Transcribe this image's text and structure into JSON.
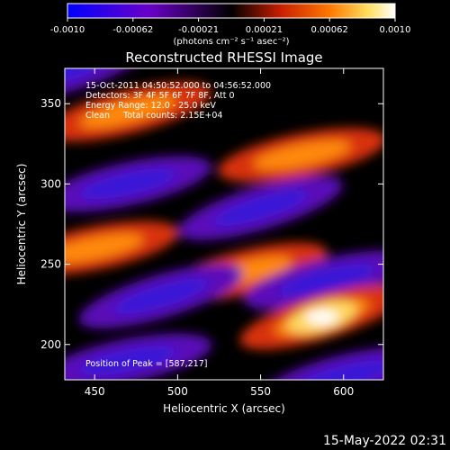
{
  "chart_data": {
    "type": "heatmap",
    "title": "Reconstructed RHESSI Image",
    "xlabel": "Heliocentric X (arcsec)",
    "ylabel": "Heliocentric Y (arcsec)",
    "xlim": [
      432,
      624
    ],
    "ylim": [
      178,
      372
    ],
    "xticks": [
      450,
      500,
      550,
      600
    ],
    "yticks": [
      200,
      250,
      300,
      350
    ],
    "colorbar": {
      "min": -0.001,
      "max": 0.001,
      "ticks": [
        "-0.0010",
        "-0.00062",
        "-0.00021",
        "0.00021",
        "0.00062",
        "0.0010"
      ],
      "units": "(photons cm⁻² s⁻¹ asec⁻²)",
      "colormap": [
        "#0000ff",
        "#6a00c8",
        "#000000",
        "#c81e00",
        "#ff7800",
        "#ffe060",
        "#ffffff"
      ]
    },
    "annotations": [
      "15-Oct-2011 04:50:52.000 to 04:56:52.000",
      "Detectors: 3F 4F 5F 6F 7F 8F, Att 0",
      "Energy Range: 12.0 - 25.0 keV",
      "Clean     Total counts: 2.15E+04",
      "Position of Peak = [587,217]"
    ],
    "peak": [
      587,
      217
    ],
    "bands": [
      {
        "type": "neg",
        "center": [
          430,
          370
        ],
        "slope": -0.28
      },
      {
        "type": "pos",
        "center": [
          470,
          345
        ],
        "slope": -0.25
      },
      {
        "type": "pos",
        "center": [
          575,
          318
        ],
        "slope": -0.2
      },
      {
        "type": "neg",
        "center": [
          470,
          300
        ],
        "slope": -0.22
      },
      {
        "type": "neg",
        "center": [
          550,
          285
        ],
        "slope": -0.3
      },
      {
        "type": "pos",
        "center": [
          450,
          260
        ],
        "slope": -0.2
      },
      {
        "type": "pos",
        "center": [
          540,
          245
        ],
        "slope": -0.25
      },
      {
        "type": "neg",
        "center": [
          490,
          230
        ],
        "slope": -0.3
      },
      {
        "type": "neg",
        "center": [
          590,
          240
        ],
        "slope": -0.25
      },
      {
        "type": "pos",
        "center": [
          587,
          217
        ],
        "slope": -0.3
      },
      {
        "type": "neg",
        "center": [
          470,
          190
        ],
        "slope": -0.2
      },
      {
        "type": "neg",
        "center": [
          600,
          180
        ],
        "slope": -0.25
      }
    ]
  },
  "footer": {
    "timestamp": "15-May-2022 02:31"
  }
}
